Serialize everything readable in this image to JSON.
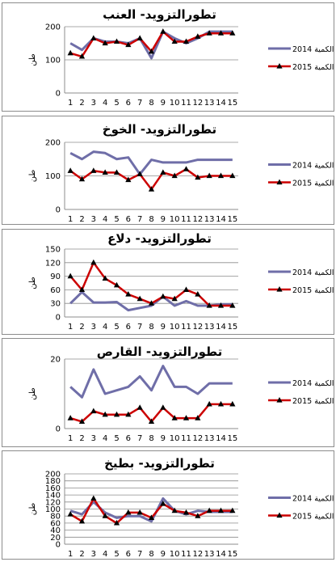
{
  "chart_data": [
    {
      "type": "line",
      "title": "تطورالتزويد- العنب",
      "ylabel": "طن",
      "categories": [
        1,
        2,
        3,
        4,
        5,
        6,
        7,
        8,
        9,
        10,
        11,
        12,
        13,
        14,
        15
      ],
      "ylim": [
        0,
        200
      ],
      "yticks": [
        0,
        100,
        200
      ],
      "series": [
        {
          "name": "الكمية 2014",
          "color": "#6f6ea8",
          "marker": false,
          "values": [
            150,
            130,
            165,
            155,
            155,
            150,
            165,
            105,
            185,
            165,
            150,
            165,
            185,
            185,
            185
          ]
        },
        {
          "name": "الكمية 2015",
          "color": "#cc0000",
          "marker": true,
          "values": [
            120,
            110,
            165,
            150,
            155,
            145,
            165,
            125,
            185,
            155,
            155,
            170,
            180,
            180,
            180
          ]
        }
      ]
    },
    {
      "type": "line",
      "title": "تطورالتزويد- الخوخ",
      "ylabel": "طن",
      "categories": [
        1,
        2,
        3,
        4,
        5,
        6,
        7,
        8,
        9,
        10,
        11,
        12,
        13,
        14,
        15
      ],
      "ylim": [
        0,
        200
      ],
      "yticks": [
        0,
        100,
        200
      ],
      "series": [
        {
          "name": "الكمية 2014",
          "color": "#6f6ea8",
          "marker": false,
          "values": [
            168,
            150,
            172,
            168,
            150,
            155,
            105,
            148,
            140,
            140,
            140,
            148,
            148,
            148,
            148
          ]
        },
        {
          "name": "الكمية 2015",
          "color": "#cc0000",
          "marker": true,
          "values": [
            115,
            90,
            115,
            110,
            110,
            88,
            105,
            60,
            110,
            100,
            120,
            95,
            100,
            100,
            100
          ]
        }
      ]
    },
    {
      "type": "line",
      "title": "تطورالتزويد- دلاع",
      "ylabel": "طن",
      "categories": [
        1,
        2,
        3,
        4,
        5,
        6,
        7,
        8,
        9,
        10,
        11,
        12,
        13,
        14,
        15
      ],
      "ylim": [
        0,
        150
      ],
      "yticks": [
        0,
        30,
        60,
        90,
        120,
        150
      ],
      "series": [
        {
          "name": "الكمية 2014",
          "color": "#6f6ea8",
          "marker": false,
          "values": [
            30,
            55,
            32,
            32,
            33,
            15,
            20,
            25,
            45,
            25,
            35,
            25,
            25,
            28,
            28
          ]
        },
        {
          "name": "الكمية 2015",
          "color": "#cc0000",
          "marker": true,
          "values": [
            90,
            60,
            120,
            85,
            70,
            50,
            40,
            30,
            45,
            40,
            60,
            50,
            25,
            25,
            25
          ]
        }
      ]
    },
    {
      "type": "line",
      "title": "تطورالتزويد- القارص",
      "ylabel": "طن",
      "categories": [
        1,
        2,
        3,
        4,
        5,
        6,
        7,
        8,
        9,
        10,
        11,
        12,
        13,
        14,
        15
      ],
      "ylim": [
        0,
        20
      ],
      "yticks": [
        0,
        20
      ],
      "series": [
        {
          "name": "الكمية 2014",
          "color": "#6f6ea8",
          "marker": false,
          "values": [
            12,
            9,
            17,
            10,
            11,
            12,
            15,
            11,
            18,
            12,
            12,
            10,
            13,
            13,
            13
          ]
        },
        {
          "name": "الكمية 2015",
          "color": "#cc0000",
          "marker": true,
          "values": [
            3,
            2,
            5,
            4,
            4,
            4,
            6,
            2,
            6,
            3,
            3,
            3,
            7,
            7,
            7
          ]
        }
      ]
    },
    {
      "type": "line",
      "title": "تطورالتزويد- بطيخ",
      "ylabel": "طن",
      "categories": [
        1,
        2,
        3,
        4,
        5,
        6,
        7,
        8,
        9,
        10,
        11,
        12,
        13,
        14,
        15
      ],
      "ylim": [
        0,
        200
      ],
      "yticks": [
        0,
        20,
        40,
        60,
        80,
        100,
        120,
        140,
        160,
        180,
        200
      ],
      "series": [
        {
          "name": "الكمية 2014",
          "color": "#6f6ea8",
          "marker": false,
          "values": [
            95,
            85,
            120,
            90,
            75,
            80,
            80,
            65,
            130,
            95,
            85,
            95,
            92,
            92,
            92
          ]
        },
        {
          "name": "الكمية 2015",
          "color": "#cc0000",
          "marker": true,
          "values": [
            85,
            65,
            130,
            80,
            60,
            90,
            90,
            75,
            115,
            95,
            90,
            80,
            95,
            95,
            95
          ]
        }
      ]
    }
  ]
}
